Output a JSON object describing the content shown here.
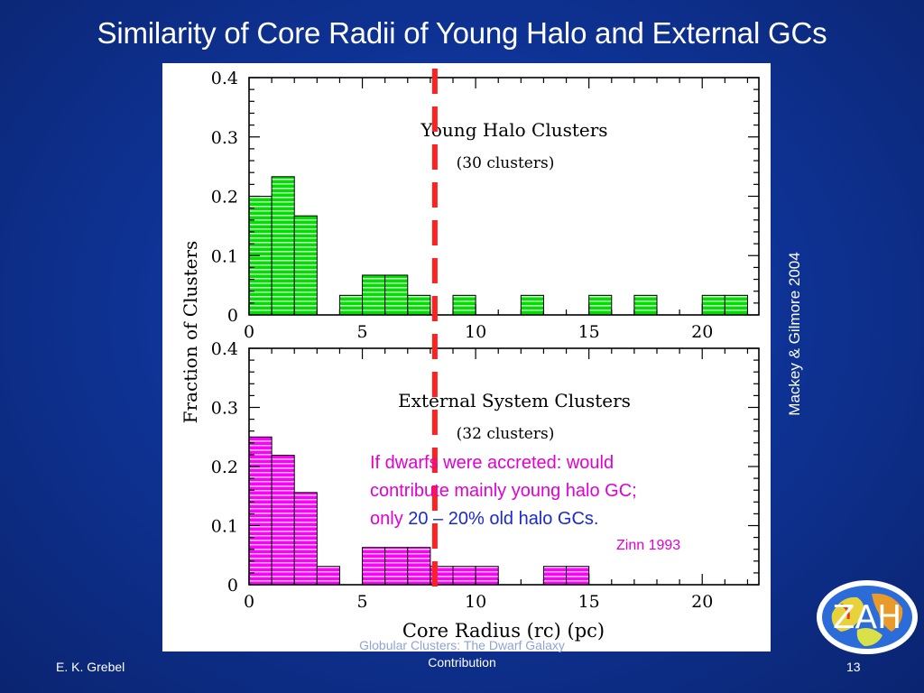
{
  "slide": {
    "title": "Similarity of Core Radii of Young Halo and External GCs",
    "side_citation": "Mackey & Gilmore 2004",
    "annotation": {
      "line1": "If dwarfs were accreted: would",
      "line2": "contribute mainly young halo GC;",
      "line3_prefix": "only ",
      "line3_highlight": "20 – 20% old halo GCs.",
      "source": "Zinn 1993"
    },
    "footer": {
      "author": "E. K. Grebel",
      "center_partial": "Globular Clusters: The Dwarf Galaxy",
      "center": "Contribution",
      "page": "13"
    },
    "logo_text": "ZAH"
  },
  "colors": {
    "young_fill": "#00e000",
    "external_fill": "#ff00ff",
    "dashed_line": "#ff2020",
    "annotation_magenta": "#e000d0",
    "annotation_blue": "#1a2ad0"
  },
  "chart_data": [
    {
      "type": "bar",
      "title": "Young Halo Clusters",
      "subtitle": "(30 clusters)",
      "xlabel": "Core Radius (rc) (pc)",
      "ylabel": "Fraction of Clusters",
      "xlim": [
        0,
        22.5
      ],
      "ylim": [
        0,
        0.4
      ],
      "x_ticks": [
        0,
        5,
        10,
        15,
        20
      ],
      "y_ticks": [
        "0",
        "0.1",
        "0.2",
        "0.3",
        "0.4"
      ],
      "bin_width": 1,
      "bin_starts": [
        0,
        1,
        2,
        4,
        5,
        6,
        7,
        9,
        12,
        15,
        17,
        20,
        21
      ],
      "values": [
        0.2,
        0.233,
        0.167,
        0.033,
        0.067,
        0.067,
        0.033,
        0.033,
        0.033,
        0.033,
        0.033,
        0.033,
        0.033
      ],
      "vertical_marker_x": 8.2
    },
    {
      "type": "bar",
      "title": "External System Clusters",
      "subtitle": "(32 clusters)",
      "xlabel": "Core Radius (rc) (pc)",
      "ylabel": "Fraction of Clusters",
      "xlim": [
        0,
        22.5
      ],
      "ylim": [
        0,
        0.4
      ],
      "x_ticks": [
        0,
        5,
        10,
        15,
        20
      ],
      "y_ticks": [
        "0",
        "0.1",
        "0.2",
        "0.3",
        "0.4"
      ],
      "bin_width": 1,
      "bin_starts": [
        0,
        1,
        2,
        3,
        5,
        6,
        7,
        8,
        9,
        10,
        13,
        14
      ],
      "values": [
        0.25,
        0.219,
        0.156,
        0.031,
        0.063,
        0.063,
        0.063,
        0.031,
        0.031,
        0.031,
        0.031,
        0.031
      ],
      "vertical_marker_x": 8.2
    }
  ]
}
